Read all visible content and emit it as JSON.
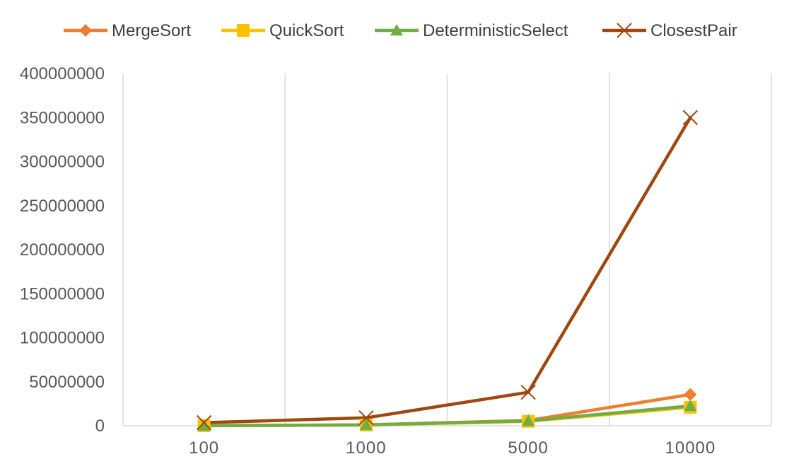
{
  "chart_data": {
    "type": "line",
    "title": "",
    "xlabel": "",
    "ylabel": "",
    "categories": [
      "100",
      "1000",
      "5000",
      "10000"
    ],
    "ylim": [
      0,
      400000000
    ],
    "y_ticks": [
      "0",
      "50000000",
      "100000000",
      "150000000",
      "200000000",
      "250000000",
      "300000000",
      "350000000",
      "400000000"
    ],
    "grid": "vertical",
    "legend_position": "top",
    "series": [
      {
        "name": "MergeSort",
        "color": "#ED7D31",
        "marker": "diamond",
        "values": [
          80000,
          1000000,
          6000000,
          35500000
        ]
      },
      {
        "name": "QuickSort",
        "color": "#FFC000",
        "marker": "square",
        "values": [
          60000,
          800000,
          5000000,
          21000000
        ]
      },
      {
        "name": "DeterministicSelect",
        "color": "#70AD47",
        "marker": "triangle",
        "values": [
          70000,
          900000,
          5500000,
          22500000
        ]
      },
      {
        "name": "ClosestPair",
        "color": "#9E480E",
        "marker": "x",
        "values": [
          3500000,
          9000000,
          38000000,
          350000000
        ]
      }
    ]
  }
}
